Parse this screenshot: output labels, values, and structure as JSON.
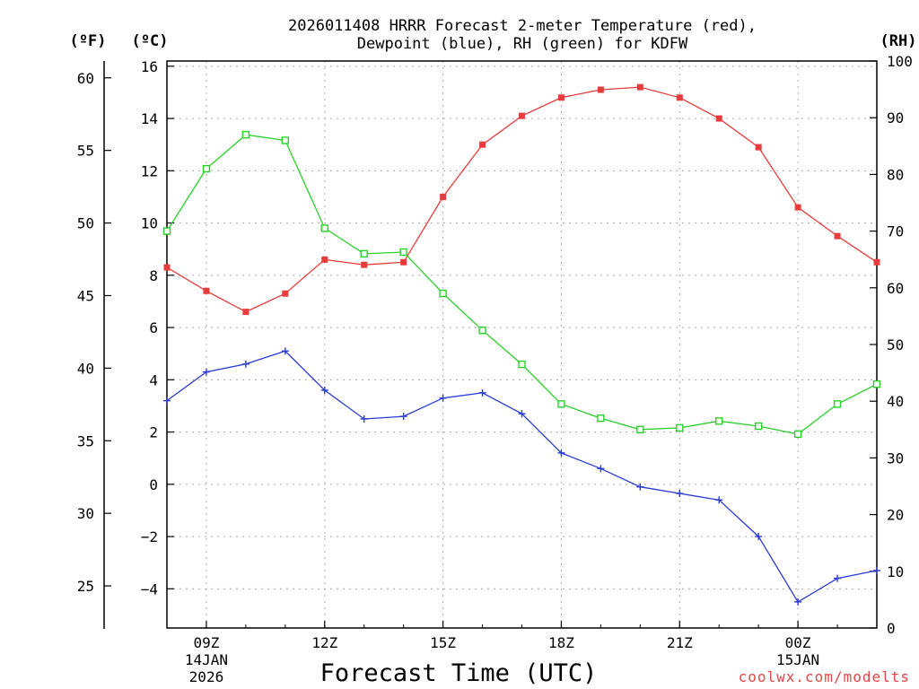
{
  "chart_data": {
    "type": "line",
    "title_line1": "2026011408 HRRR Forecast 2-meter Temperature (red),",
    "title_line2": "Dewpoint (blue), RH (green) for KDFW",
    "xlabel": "Forecast Time (UTC)",
    "credit": "coolwx.com/modelts",
    "units": {
      "fahrenheit": "(ºF)",
      "celsius": "(ºC)",
      "rh": "(RH)"
    },
    "x_hours": [
      8,
      9,
      10,
      11,
      12,
      13,
      14,
      15,
      16,
      17,
      18,
      19,
      20,
      21,
      22,
      23,
      24,
      25,
      26
    ],
    "x_ticks": [
      {
        "hour": 9,
        "label": "09Z",
        "date": "14JAN",
        "year": "2026"
      },
      {
        "hour": 12,
        "label": "12Z",
        "date": "",
        "year": ""
      },
      {
        "hour": 15,
        "label": "15Z",
        "date": "",
        "year": ""
      },
      {
        "hour": 18,
        "label": "18Z",
        "date": "",
        "year": ""
      },
      {
        "hour": 21,
        "label": "21Z",
        "date": "",
        "year": ""
      },
      {
        "hour": 24,
        "label": "00Z",
        "date": "15JAN",
        "year": ""
      }
    ],
    "celsius_axis": {
      "min": -5.5,
      "max": 16.2,
      "ticks": [
        -4,
        -2,
        0,
        2,
        4,
        6,
        8,
        10,
        12,
        14,
        16
      ]
    },
    "fahrenheit_axis": {
      "ticks": [
        25,
        30,
        35,
        40,
        45,
        50,
        55,
        60
      ]
    },
    "rh_axis": {
      "min": 0,
      "max": 100,
      "ticks": [
        0,
        10,
        20,
        30,
        40,
        50,
        60,
        70,
        80,
        90,
        100
      ]
    },
    "series": [
      {
        "name": "Temperature",
        "axis": "celsius",
        "color": "#e83c3c",
        "marker": "filled-square",
        "values": [
          8.3,
          7.4,
          6.6,
          7.3,
          8.6,
          8.4,
          8.5,
          11.0,
          13.0,
          14.1,
          14.8,
          15.1,
          15.2,
          14.8,
          14.0,
          12.9,
          10.6,
          9.5,
          8.5
        ]
      },
      {
        "name": "Dewpoint",
        "axis": "celsius",
        "color": "#2a3ad8",
        "marker": "plus",
        "values": [
          3.2,
          4.3,
          4.6,
          5.1,
          3.6,
          2.5,
          2.6,
          3.3,
          3.5,
          2.7,
          1.2,
          0.6,
          -0.1,
          -0.35,
          -0.6,
          -2.0,
          -4.5,
          -3.6,
          -3.3
        ]
      },
      {
        "name": "RH",
        "axis": "rh",
        "color": "#2ad02a",
        "marker": "open-square",
        "values": [
          70,
          81,
          87,
          86,
          70.5,
          66,
          66.3,
          59,
          52.5,
          46.5,
          39.5,
          37,
          35,
          35.3,
          36.5,
          35.6,
          34.2,
          39.5,
          43
        ]
      }
    ]
  }
}
